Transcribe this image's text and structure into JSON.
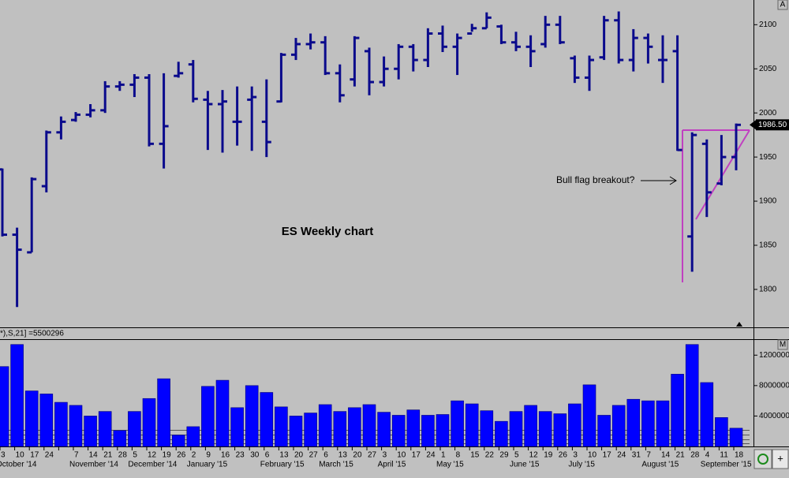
{
  "chart_data": [
    {
      "type": "ohlc",
      "title": "ES Weekly chart",
      "annotation": "Bull flag breakout?",
      "color": "#0a0a8c",
      "open": [
        1936,
        1862,
        1842,
        1917,
        1978,
        1992,
        1998,
        2003,
        2030,
        2032,
        2040,
        1965,
        2042,
        2055,
        2015,
        2010,
        1990,
        2015,
        1990,
        2013,
        2066,
        2078,
        2080,
        2045,
        2038,
        2070,
        2035,
        2050,
        2075,
        2060,
        2090,
        2075,
        2090,
        2096,
        2098,
        2080,
        2075,
        2078,
        2100,
        2062,
        2040,
        2063,
        2105,
        2060,
        2085,
        2060,
        2070,
        1860,
        1965,
        1920,
        1950
      ],
      "high": [
        1937,
        1870,
        1927,
        1980,
        1996,
        2001,
        2010,
        2036,
        2036,
        2044,
        2044,
        2045,
        2058,
        2060,
        2025,
        2026,
        2030,
        2030,
        2038,
        2068,
        2085,
        2090,
        2087,
        2055,
        2087,
        2074,
        2064,
        2078,
        2078,
        2096,
        2099,
        2090,
        2101,
        2114,
        2100,
        2092,
        2088,
        2110,
        2110,
        2065,
        2065,
        2110,
        2115,
        2095,
        2090,
        2088,
        2088,
        1978,
        1970,
        1975,
        1988
      ],
      "low": [
        1860,
        1780,
        1842,
        1910,
        1970,
        1990,
        1995,
        2000,
        2025,
        2018,
        1962,
        1937,
        2040,
        2012,
        1958,
        1955,
        1963,
        1957,
        1950,
        2012,
        2060,
        2072,
        2043,
        2012,
        2030,
        2020,
        2030,
        2038,
        2047,
        2052,
        2069,
        2043,
        2092,
        2096,
        2078,
        2070,
        2052,
        2074,
        2078,
        2034,
        2025,
        2060,
        2056,
        2047,
        2056,
        2034,
        1957,
        1820,
        1882,
        1918,
        1935
      ],
      "close": [
        1862,
        1845,
        1925,
        1978,
        1990,
        1998,
        2003,
        2030,
        2032,
        2040,
        1965,
        1985,
        2045,
        2016,
        2010,
        2013,
        1990,
        2018,
        1967,
        2066,
        2078,
        2080,
        2045,
        2020,
        2085,
        2035,
        2050,
        2075,
        2060,
        2090,
        2075,
        2085,
        2096,
        2108,
        2080,
        2075,
        2070,
        2100,
        2080,
        2040,
        2060,
        2105,
        2060,
        2085,
        2075,
        2060,
        1958,
        1975,
        1910,
        1950,
        1986.5
      ],
      "last_label": "1986.50",
      "ylim": [
        1757,
        2128
      ],
      "yticks": [
        1800,
        1850,
        1900,
        1950,
        2000,
        2050,
        2100
      ]
    },
    {
      "type": "bar",
      "header": "*),S,21] =5500296",
      "color": "#0000ff",
      "categories": [
        "3",
        "10",
        "17",
        "24",
        null,
        "7",
        "14",
        "21",
        "28",
        "5",
        "12",
        "19",
        "26",
        "2",
        "9",
        "16",
        "23",
        "30",
        "6",
        "13",
        "20",
        "27",
        "6",
        "13",
        "20",
        "27",
        "3",
        "10",
        "17",
        "24",
        "1",
        "8",
        "15",
        "22",
        "29",
        "5",
        "12",
        "19",
        "26",
        "3",
        "10",
        "17",
        "24",
        "31",
        "7",
        "14",
        "21",
        "28",
        "4",
        "11",
        "18"
      ],
      "month_labels": [
        "October '14",
        "November '14",
        "December '14",
        "January '15",
        "February '15",
        "March '15",
        "April '15",
        "May '15",
        "June '15",
        "July '15",
        "August '15",
        "September '15"
      ],
      "values": [
        10500000,
        13400000,
        7300000,
        6900000,
        5800000,
        5400000,
        4000000,
        4600000,
        2100000,
        4600000,
        6300000,
        8900000,
        1500000,
        2600000,
        7900000,
        8700000,
        5100000,
        8000000,
        7100000,
        5200000,
        4000000,
        4400000,
        5500000,
        4600000,
        5100000,
        5500000,
        4500000,
        4100000,
        4800000,
        4100000,
        4200000,
        6000000,
        5600000,
        4700000,
        3300000,
        4600000,
        5400000,
        4600000,
        4300000,
        5600000,
        8100000,
        4100000,
        5400000,
        6200000,
        6000000,
        6000000,
        9500000,
        13400000,
        8400000,
        3800000,
        2400000
      ],
      "ylim": [
        0,
        14100000
      ],
      "yticks": [
        4000000,
        8000000,
        12000000
      ]
    }
  ],
  "ui": {
    "price_scale_button": "A",
    "volume_scale_button": "M",
    "add_button": "+"
  }
}
